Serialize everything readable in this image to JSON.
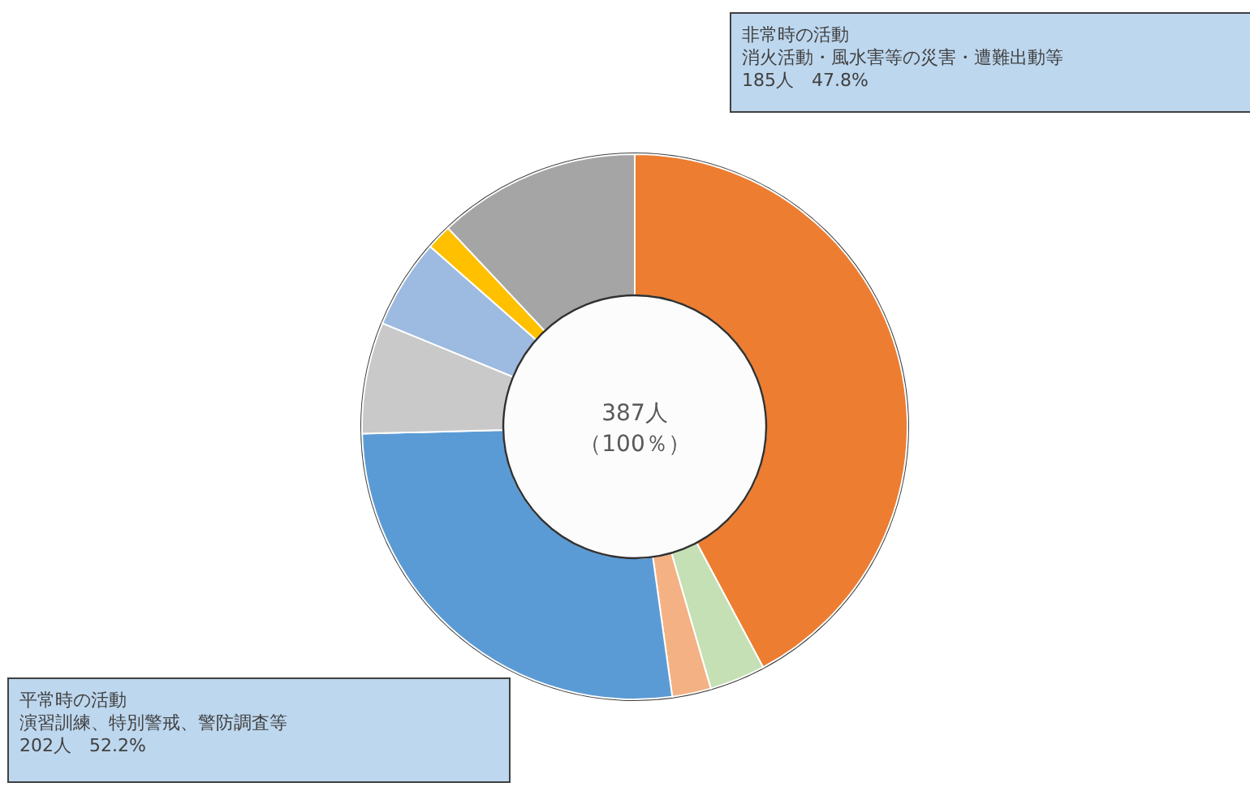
{
  "chart_data": {
    "type": "donut",
    "categories": [
      null,
      null,
      null,
      null,
      null,
      null,
      null,
      null
    ],
    "values": [
      42.2,
      3.3,
      2.3,
      26.8,
      6.6,
      5.3,
      1.5,
      12.0
    ],
    "colors": [
      "#ed7d31",
      "#c5e0b4",
      "#f4b183",
      "#5b9bd5",
      "#c9c9c9",
      "#9dbae0",
      "#ffc000",
      "#a5a5a5"
    ],
    "annotations": [
      "387人",
      "（100％）",
      "非常時の活動",
      "消火活動・風水害等の災害・遭難出動等",
      "185人　47.8%",
      "平常時の活動",
      "演習訓練、特別警戒、警防調査等",
      "202人　52.2%"
    ]
  }
}
